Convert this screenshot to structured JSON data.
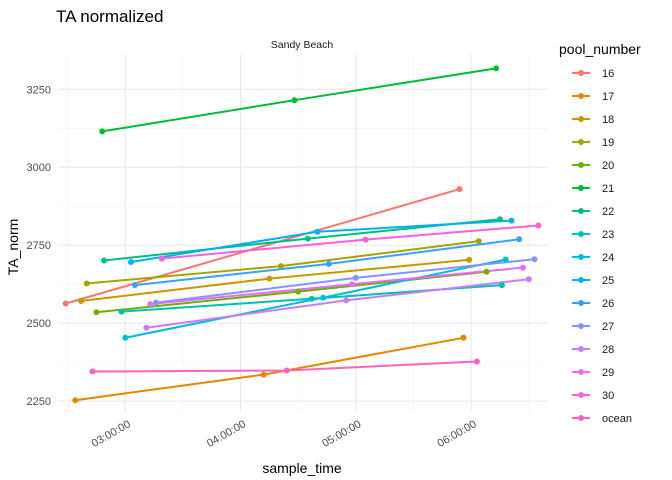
{
  "chart_data": {
    "type": "line",
    "title": "TA normalized",
    "facet_label": "Sandy Beach",
    "xlabel": "sample_time",
    "ylabel": "TA_norm",
    "x_ticks": [
      "03:00:00",
      "04:00:00",
      "05:00:00",
      "06:00:00"
    ],
    "y_ticks": [
      2250,
      2500,
      2750,
      3000,
      3250
    ],
    "xlim": [
      "02:25:00",
      "06:40:00"
    ],
    "ylim": [
      2215,
      3360
    ],
    "grid": true,
    "legend_title": "pool_number",
    "legend_position": "right",
    "series": [
      {
        "name": "16",
        "color": "#F8766D",
        "points": [
          [
            "02:29:00",
            2563
          ],
          [
            "05:54:00",
            2930
          ]
        ]
      },
      {
        "name": "17",
        "color": "#E58700",
        "points": [
          [
            "02:34:00",
            2253
          ],
          [
            "04:12:00",
            2335
          ],
          [
            "05:56:00",
            2453
          ]
        ]
      },
      {
        "name": "18",
        "color": "#C99800",
        "points": [
          [
            "02:37:00",
            2571
          ],
          [
            "04:15:00",
            2643
          ],
          [
            "05:59:00",
            2703
          ]
        ]
      },
      {
        "name": "19",
        "color": "#A3A500",
        "points": [
          [
            "02:40:00",
            2627
          ],
          [
            "04:21:00",
            2683
          ],
          [
            "06:04:00",
            2763
          ]
        ]
      },
      {
        "name": "20",
        "color": "#6BB100",
        "points": [
          [
            "02:45:00",
            2535
          ],
          [
            "04:30:00",
            2601
          ],
          [
            "06:08:00",
            2665
          ]
        ]
      },
      {
        "name": "21",
        "color": "#00BA38",
        "points": [
          [
            "02:48:00",
            3115
          ],
          [
            "04:28:00",
            3215
          ],
          [
            "06:13:00",
            3317
          ]
        ]
      },
      {
        "name": "22",
        "color": "#00BF7D",
        "points": [
          [
            "02:49:00",
            2701
          ],
          [
            "04:35:00",
            2771
          ],
          [
            "06:15:00",
            2833
          ]
        ]
      },
      {
        "name": "23",
        "color": "#00C0AF",
        "points": [
          [
            "02:58:00",
            2537
          ],
          [
            "04:37:00",
            2578
          ],
          [
            "06:16:00",
            2622
          ]
        ]
      },
      {
        "name": "24",
        "color": "#00BCD8",
        "points": [
          [
            "03:00:00",
            2453
          ],
          [
            "04:43:00",
            2582
          ],
          [
            "06:18:00",
            2704
          ]
        ]
      },
      {
        "name": "25",
        "color": "#00B0F6",
        "points": [
          [
            "03:03:00",
            2696
          ],
          [
            "04:40:00",
            2793
          ],
          [
            "06:21:00",
            2829
          ]
        ]
      },
      {
        "name": "26",
        "color": "#35A2FF",
        "points": [
          [
            "03:05:00",
            2622
          ],
          [
            "04:46:00",
            2690
          ],
          [
            "06:25:00",
            2769
          ]
        ]
      },
      {
        "name": "27",
        "color": "#8494FF",
        "points": [
          [
            "03:16:00",
            2566
          ],
          [
            "05:00:00",
            2645
          ],
          [
            "06:33:00",
            2705
          ]
        ]
      },
      {
        "name": "28",
        "color": "#C77CFF",
        "points": [
          [
            "03:11:00",
            2485
          ],
          [
            "04:55:00",
            2573
          ],
          [
            "06:30:00",
            2641
          ]
        ]
      },
      {
        "name": "29",
        "color": "#E76BF3",
        "points": [
          [
            "03:13:00",
            2561
          ],
          [
            "04:58:00",
            2625
          ],
          [
            "06:27:00",
            2678
          ]
        ]
      },
      {
        "name": "30",
        "color": "#FA62DB",
        "points": [
          [
            "03:19:00",
            2707
          ],
          [
            "05:05:00",
            2768
          ],
          [
            "06:35:00",
            2813
          ]
        ]
      },
      {
        "name": "ocean",
        "color": "#FF62BC",
        "points": [
          [
            "02:43:00",
            2345
          ],
          [
            "04:24:00",
            2348
          ],
          [
            "06:03:00",
            2377
          ]
        ]
      }
    ]
  }
}
